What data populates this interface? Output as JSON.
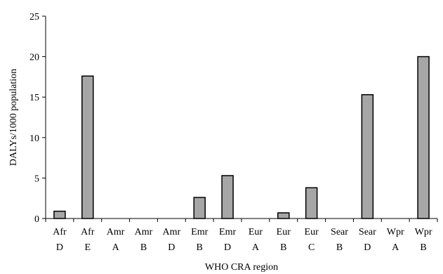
{
  "chart_data": {
    "type": "bar",
    "xlabel": "WHO CRA region",
    "ylabel": "DALYs/1000 population",
    "ylim": [
      0,
      25
    ],
    "yticks": [
      0,
      5,
      10,
      15,
      20,
      25
    ],
    "grid": false,
    "legend": "none",
    "bar_color": "#a6a6a6",
    "categories": [
      [
        "Afr",
        "D"
      ],
      [
        "Afr",
        "E"
      ],
      [
        "Amr",
        "A"
      ],
      [
        "Amr",
        "B"
      ],
      [
        "Amr",
        "D"
      ],
      [
        "Emr",
        "B"
      ],
      [
        "Emr",
        "D"
      ],
      [
        "Eur",
        "A"
      ],
      [
        "Eur",
        "B"
      ],
      [
        "Eur",
        "C"
      ],
      [
        "Sear",
        "B"
      ],
      [
        "Sear",
        "D"
      ],
      [
        "Wpr",
        "A"
      ],
      [
        "Wpr",
        "B"
      ]
    ],
    "values": [
      0.9,
      17.6,
      0,
      0,
      0,
      2.6,
      5.3,
      0,
      0.7,
      3.8,
      0,
      15.3,
      0,
      20.0
    ]
  }
}
